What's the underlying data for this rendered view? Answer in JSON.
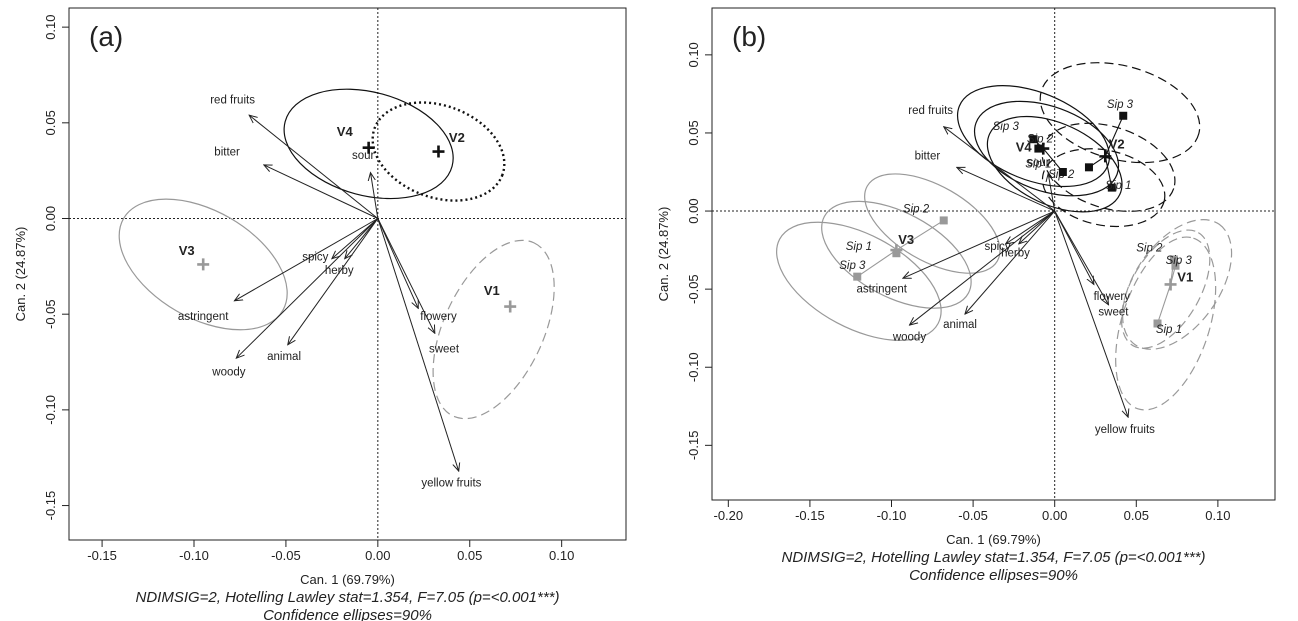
{
  "chart_data": [
    {
      "type": "scatter",
      "panel_label": "(a)",
      "xlabel": "Can. 1 (69.79%)",
      "ylabel": "Can. 2 (24.87%)",
      "xlim": [
        -0.168,
        0.135
      ],
      "ylim": [
        -0.168,
        0.11
      ],
      "xticks": [
        -0.15,
        -0.1,
        -0.05,
        0.0,
        0.05,
        0.1
      ],
      "xtick_labels": [
        "-0.15",
        "-0.10",
        "-0.05",
        "0.00",
        "0.05",
        "0.10"
      ],
      "yticks": [
        -0.15,
        -0.1,
        -0.05,
        0.0,
        0.05,
        0.1
      ],
      "ytick_labels": [
        "-0.15",
        "-0.10",
        "-0.05",
        "0.00",
        "0.05",
        "0.10"
      ],
      "note_line1": "NDIMSIG=2, Hotelling Lawley stat=1.354, F=7.05 (p=<0.001***)",
      "note_line2": "Confidence ellipses=90%",
      "reference_lines": {
        "x": 0,
        "y": 0
      },
      "vectors": [
        {
          "label": "red fruits",
          "x": -0.07,
          "y": 0.054,
          "lx": -0.079,
          "ly": 0.06
        },
        {
          "label": "bitter",
          "x": -0.062,
          "y": 0.028,
          "lx": -0.082,
          "ly": 0.033
        },
        {
          "label": "sour",
          "x": -0.004,
          "y": 0.024,
          "lx": -0.008,
          "ly": 0.031
        },
        {
          "label": "spicy",
          "x": -0.025,
          "y": -0.021,
          "lx": -0.034,
          "ly": -0.022
        },
        {
          "label": "herby",
          "x": -0.018,
          "y": -0.021,
          "lx": -0.021,
          "ly": -0.029
        },
        {
          "label": "astringent",
          "x": -0.078,
          "y": -0.043,
          "lx": -0.095,
          "ly": -0.053
        },
        {
          "label": "woody",
          "x": -0.077,
          "y": -0.073,
          "lx": -0.081,
          "ly": -0.082
        },
        {
          "label": "animal",
          "x": -0.049,
          "y": -0.066,
          "lx": -0.051,
          "ly": -0.074
        },
        {
          "label": "flowery",
          "x": 0.022,
          "y": -0.047,
          "lx": 0.033,
          "ly": -0.053
        },
        {
          "label": "sweet",
          "x": 0.031,
          "y": -0.06,
          "lx": 0.036,
          "ly": -0.07
        },
        {
          "label": "yellow fruits",
          "x": 0.044,
          "y": -0.132,
          "lx": 0.04,
          "ly": -0.14
        }
      ],
      "groups": [
        {
          "label": "V1",
          "x": 0.072,
          "y": -0.046,
          "color": "#999999",
          "dash": "dashed",
          "lx": 0.062,
          "ly": -0.04,
          "ellipses": [
            {
              "cx": 0.063,
              "cy": -0.058,
              "rx": 0.052,
              "ry": 0.026,
              "angle": -65
            }
          ]
        },
        {
          "label": "V2",
          "x": 0.033,
          "y": 0.035,
          "color": "#111111",
          "dash": "dotted",
          "lx": 0.043,
          "ly": 0.04,
          "ellipses": [
            {
              "cx": 0.033,
              "cy": 0.035,
              "rx": 0.037,
              "ry": 0.024,
              "angle": 20
            }
          ]
        },
        {
          "label": "V3",
          "x": -0.095,
          "y": -0.024,
          "color": "#999999",
          "dash": "solid",
          "lx": -0.104,
          "ly": -0.019,
          "ellipses": [
            {
              "cx": -0.095,
              "cy": -0.024,
              "rx": 0.05,
              "ry": 0.028,
              "angle": 30
            }
          ]
        },
        {
          "label": "V4",
          "x": -0.005,
          "y": 0.037,
          "color": "#111111",
          "dash": "solid",
          "lx": -0.018,
          "ly": 0.043,
          "ellipses": [
            {
              "cx": -0.005,
              "cy": 0.039,
              "rx": 0.047,
              "ry": 0.027,
              "angle": 15
            }
          ]
        }
      ],
      "sips": []
    },
    {
      "type": "scatter",
      "panel_label": "(b)",
      "xlabel": "Can. 1 (69.79%)",
      "ylabel": "Can. 2 (24.87%)",
      "xlim": [
        -0.21,
        0.135
      ],
      "ylim": [
        -0.185,
        0.13
      ],
      "xticks": [
        -0.2,
        -0.15,
        -0.1,
        -0.05,
        0.0,
        0.05,
        0.1
      ],
      "xtick_labels": [
        "-0.20",
        "-0.15",
        "-0.10",
        "-0.05",
        "0.00",
        "0.05",
        "0.10"
      ],
      "yticks": [
        -0.15,
        -0.1,
        -0.05,
        0.0,
        0.05,
        0.1
      ],
      "ytick_labels": [
        "-0.15",
        "-0.10",
        "-0.05",
        "0.00",
        "0.05",
        "0.10"
      ],
      "note_line1": "NDIMSIG=2, Hotelling Lawley stat=1.354, F=7.05 (p=<0.001***)",
      "note_line2": "Confidence ellipses=90%",
      "reference_lines": {
        "x": 0,
        "y": 0
      },
      "vectors": [
        {
          "label": "red fruits",
          "x": -0.068,
          "y": 0.054,
          "lx": -0.076,
          "ly": 0.062
        },
        {
          "label": "bitter",
          "x": -0.06,
          "y": 0.028,
          "lx": -0.078,
          "ly": 0.033
        },
        {
          "label": "sour",
          "x": -0.004,
          "y": 0.024,
          "lx": -0.01,
          "ly": 0.029
        },
        {
          "label": "spicy",
          "x": -0.03,
          "y": -0.021,
          "lx": -0.035,
          "ly": -0.025
        },
        {
          "label": "herby",
          "x": -0.022,
          "y": -0.021,
          "lx": -0.024,
          "ly": -0.029
        },
        {
          "label": "astringent",
          "x": -0.093,
          "y": -0.043,
          "lx": -0.106,
          "ly": -0.052
        },
        {
          "label": "woody",
          "x": -0.089,
          "y": -0.073,
          "lx": -0.089,
          "ly": -0.083
        },
        {
          "label": "animal",
          "x": -0.055,
          "y": -0.066,
          "lx": -0.058,
          "ly": -0.075
        },
        {
          "label": "flowery",
          "x": 0.024,
          "y": -0.047,
          "lx": 0.035,
          "ly": -0.057
        },
        {
          "label": "sweet",
          "x": 0.033,
          "y": -0.06,
          "lx": 0.036,
          "ly": -0.067
        },
        {
          "label": "yellow fruits",
          "x": 0.045,
          "y": -0.132,
          "lx": 0.043,
          "ly": -0.142
        }
      ],
      "groups": [
        {
          "label": "V1",
          "x": 0.071,
          "y": -0.047,
          "color": "#999999",
          "dash": "dashed",
          "lx": 0.08,
          "ly": -0.045,
          "ellipses": [
            {
              "cx": 0.068,
              "cy": -0.072,
              "rx": 0.055,
              "ry": 0.028,
              "angle": -72
            },
            {
              "cx": 0.075,
              "cy": -0.047,
              "rx": 0.045,
              "ry": 0.027,
              "angle": -55
            },
            {
              "cx": 0.068,
              "cy": -0.05,
              "rx": 0.04,
              "ry": 0.022,
              "angle": -60
            }
          ]
        },
        {
          "label": "V2",
          "x": 0.031,
          "y": 0.035,
          "color": "#111111",
          "dash": "dashed",
          "lx": 0.038,
          "ly": 0.04,
          "ellipses": [
            {
              "cx": 0.04,
              "cy": 0.063,
              "rx": 0.05,
              "ry": 0.03,
              "angle": 15
            },
            {
              "cx": 0.033,
              "cy": 0.028,
              "rx": 0.042,
              "ry": 0.026,
              "angle": 18
            },
            {
              "cx": 0.03,
              "cy": 0.015,
              "rx": 0.038,
              "ry": 0.024,
              "angle": 12
            }
          ]
        },
        {
          "label": "V3",
          "x": -0.097,
          "y": -0.025,
          "color": "#999999",
          "dash": "solid",
          "lx": -0.091,
          "ly": -0.021,
          "ellipses": [
            {
              "cx": -0.12,
              "cy": -0.045,
              "rx": 0.055,
              "ry": 0.03,
              "angle": 28
            },
            {
              "cx": -0.097,
              "cy": -0.028,
              "rx": 0.05,
              "ry": 0.027,
              "angle": 28
            },
            {
              "cx": -0.075,
              "cy": -0.008,
              "rx": 0.046,
              "ry": 0.024,
              "angle": 30
            }
          ]
        },
        {
          "label": "V4",
          "x": -0.007,
          "y": 0.04,
          "color": "#111111",
          "dash": "solid",
          "lx": -0.019,
          "ly": 0.038,
          "ellipses": [
            {
              "cx": -0.013,
              "cy": 0.048,
              "rx": 0.049,
              "ry": 0.028,
              "angle": 22
            },
            {
              "cx": -0.005,
              "cy": 0.04,
              "rx": 0.046,
              "ry": 0.027,
              "angle": 20
            },
            {
              "cx": 0.0,
              "cy": 0.03,
              "rx": 0.044,
              "ry": 0.026,
              "angle": 25
            }
          ]
        }
      ],
      "sips": [
        {
          "group": "V1",
          "color": "#999999",
          "points": [
            {
              "label": "Sip 1",
              "x": 0.063,
              "y": -0.072,
              "lx": 0.07,
              "ly": -0.078
            },
            {
              "label": "Sip 2",
              "x": 0.073,
              "y": -0.031,
              "lx": 0.058,
              "ly": -0.026
            },
            {
              "label": "Sip 3",
              "x": 0.074,
              "y": -0.035,
              "lx": 0.076,
              "ly": -0.034
            }
          ]
        },
        {
          "group": "V2",
          "color": "#111111",
          "points": [
            {
              "label": "Sip 1",
              "x": 0.035,
              "y": 0.015,
              "lx": 0.039,
              "ly": 0.014
            },
            {
              "label": "Sip 2",
              "x": 0.021,
              "y": 0.028,
              "lx": 0.004,
              "ly": 0.021
            },
            {
              "label": "Sip 3",
              "x": 0.042,
              "y": 0.061,
              "lx": 0.04,
              "ly": 0.066
            }
          ]
        },
        {
          "group": "V3",
          "color": "#999999",
          "points": [
            {
              "label": "Sip 1",
              "x": -0.097,
              "y": -0.027,
              "lx": -0.12,
              "ly": -0.025
            },
            {
              "label": "Sip 2",
              "x": -0.068,
              "y": -0.006,
              "lx": -0.085,
              "ly": -0.001
            },
            {
              "label": "Sip 3",
              "x": -0.121,
              "y": -0.042,
              "lx": -0.124,
              "ly": -0.037
            }
          ]
        },
        {
          "group": "V4",
          "color": "#111111",
          "points": [
            {
              "label": "Sip 1",
              "x": 0.005,
              "y": 0.025,
              "lx": -0.01,
              "ly": 0.028
            },
            {
              "label": "Sip 2",
              "x": -0.013,
              "y": 0.046,
              "lx": -0.009,
              "ly": 0.044
            },
            {
              "label": "Sip 3",
              "x": -0.01,
              "y": 0.04,
              "lx": -0.03,
              "ly": 0.052
            }
          ]
        }
      ]
    }
  ]
}
